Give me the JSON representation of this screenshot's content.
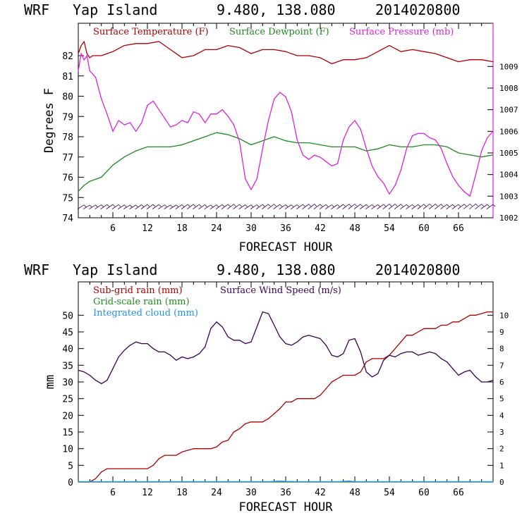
{
  "colors": {
    "temperature": "#b00000",
    "dewpoint": "#1e8c1e",
    "pressure": "#e020e0",
    "subgrid_rain": "#b00000",
    "gridscale_rain": "#1e8c1e",
    "cloud": "#1e90ff",
    "wind": "#3c0058",
    "axis": "#000000"
  },
  "chart_data": [
    {
      "type": "line",
      "title": {
        "model": "WRF",
        "location": "Yap Island",
        "coords": "9.480, 138.080",
        "init": "2014020800"
      },
      "xlabel": "FORECAST HOUR",
      "ylabel": "Degrees F",
      "xlim": [
        0,
        72
      ],
      "ylim": [
        74,
        83.6
      ],
      "y2lim": [
        1002,
        1011
      ],
      "xticks": [
        6,
        12,
        18,
        24,
        30,
        36,
        42,
        48,
        54,
        60,
        66
      ],
      "yticks": [
        74,
        75,
        76,
        77,
        78,
        79,
        80,
        81,
        82
      ],
      "y2ticks": [
        1002,
        1003,
        1004,
        1005,
        1006,
        1007,
        1008,
        1009
      ],
      "legend": [
        "Surface Temperature (F)",
        "Surface Dewpoint (F)",
        "Surface Pressure (mb)"
      ],
      "series": [
        {
          "name": "Surface Temperature (F)",
          "axis": "left",
          "x": [
            0,
            0.5,
            1,
            1.5,
            2,
            2.5,
            3,
            4,
            5,
            6,
            8,
            10,
            12,
            14,
            16,
            18,
            20,
            22,
            24,
            26,
            28,
            30,
            32,
            34,
            36,
            38,
            40,
            42,
            44,
            46,
            48,
            50,
            52,
            54,
            56,
            58,
            60,
            62,
            64,
            66,
            68,
            70,
            72
          ],
          "values": [
            82.1,
            82.5,
            82.7,
            82.1,
            81.9,
            82.0,
            82.0,
            82.0,
            82.1,
            82.2,
            82.5,
            82.6,
            82.6,
            82.7,
            82.3,
            81.9,
            82.0,
            82.3,
            82.3,
            82.5,
            82.4,
            82.1,
            82.3,
            82.3,
            82.2,
            82.0,
            82.0,
            81.9,
            81.6,
            81.8,
            81.8,
            81.9,
            82.2,
            82.5,
            82.2,
            82.3,
            82.2,
            82.1,
            81.9,
            81.7,
            81.8,
            81.8,
            81.7
          ]
        },
        {
          "name": "Surface Dewpoint (F)",
          "axis": "left",
          "x": [
            0,
            1,
            2,
            3,
            4,
            5,
            6,
            8,
            10,
            12,
            14,
            16,
            18,
            20,
            22,
            24,
            26,
            28,
            30,
            32,
            34,
            36,
            38,
            40,
            42,
            44,
            46,
            48,
            50,
            52,
            54,
            56,
            58,
            60,
            62,
            64,
            66,
            68,
            70,
            72
          ],
          "values": [
            75.3,
            75.6,
            75.8,
            75.9,
            76.0,
            76.3,
            76.6,
            77.0,
            77.3,
            77.5,
            77.5,
            77.5,
            77.6,
            77.8,
            78.0,
            78.2,
            78.1,
            77.9,
            77.6,
            77.8,
            78.0,
            77.8,
            77.7,
            77.7,
            77.6,
            77.5,
            77.5,
            77.5,
            77.3,
            77.4,
            77.6,
            77.5,
            77.5,
            77.6,
            77.6,
            77.5,
            77.2,
            77.1,
            77.0,
            77.1
          ]
        },
        {
          "name": "Surface Pressure (mb)",
          "axis": "right",
          "x": [
            0,
            0.5,
            1,
            1.5,
            2,
            3,
            4,
            5,
            6,
            7,
            8,
            9,
            10,
            11,
            12,
            13,
            14,
            15,
            16,
            17,
            18,
            19,
            20,
            21,
            22,
            23,
            24,
            25,
            26,
            27,
            28,
            29,
            30,
            31,
            32,
            33,
            34,
            35,
            36,
            37,
            38,
            39,
            40,
            41,
            42,
            43,
            44,
            45,
            46,
            47,
            48,
            49,
            50,
            51,
            52,
            53,
            54,
            55,
            56,
            57,
            58,
            59,
            60,
            61,
            62,
            63,
            64,
            65,
            66,
            67,
            68,
            69,
            70,
            71,
            72
          ],
          "values": [
            1008.8,
            1009.6,
            1009.3,
            1009.5,
            1008.8,
            1008.5,
            1007.5,
            1006.8,
            1006.0,
            1006.5,
            1006.3,
            1006.4,
            1006.0,
            1006.4,
            1007.2,
            1007.4,
            1007.0,
            1006.6,
            1006.2,
            1006.3,
            1006.5,
            1006.4,
            1006.9,
            1006.8,
            1006.4,
            1006.8,
            1006.8,
            1007.0,
            1006.7,
            1006.3,
            1005.5,
            1003.8,
            1003.3,
            1003.8,
            1005.2,
            1006.5,
            1007.5,
            1007.8,
            1007.6,
            1006.9,
            1005.6,
            1004.9,
            1004.7,
            1004.9,
            1004.8,
            1004.6,
            1004.4,
            1004.5,
            1005.6,
            1006.2,
            1006.5,
            1006.1,
            1005.2,
            1004.4,
            1003.9,
            1003.6,
            1003.1,
            1003.5,
            1004.2,
            1005.2,
            1005.8,
            1005.9,
            1005.9,
            1005.7,
            1005.6,
            1005.2,
            1004.5,
            1003.9,
            1003.5,
            1003.2,
            1003.0,
            1004.0,
            1005.1,
            1005.7,
            1006.0
          ]
        }
      ],
      "wind_barbs": {
        "name": "Wind barbs",
        "y": 74.5,
        "note": "barbs along bottom of panel"
      }
    },
    {
      "type": "line",
      "title": {
        "model": "WRF",
        "location": "Yap Island",
        "coords": "9.480, 138.080",
        "init": "2014020800"
      },
      "xlabel": "FORECAST HOUR",
      "ylabel": "mm",
      "xlim": [
        0,
        72
      ],
      "ylim": [
        0,
        60
      ],
      "y2lim": [
        0,
        12
      ],
      "xticks": [
        6,
        12,
        18,
        24,
        30,
        36,
        42,
        48,
        54,
        60,
        66
      ],
      "yticks": [
        0,
        5,
        10,
        15,
        20,
        25,
        30,
        35,
        40,
        45,
        50
      ],
      "y2ticks": [
        0,
        1,
        2,
        3,
        4,
        5,
        6,
        7,
        8,
        9,
        10
      ],
      "legend": [
        "Sub-grid rain (mm)",
        "Grid-scale rain (mm)",
        "Integrated cloud (mm)",
        "Surface Wind Speed (m/s)"
      ],
      "series": [
        {
          "name": "Sub-grid rain (mm)",
          "axis": "left",
          "x": [
            0,
            1,
            2,
            3,
            4,
            5,
            11,
            12,
            13,
            14,
            15,
            16,
            17,
            18,
            19,
            20,
            22,
            23,
            24,
            25,
            26,
            27,
            28,
            29,
            30,
            31,
            32,
            33,
            34,
            35,
            36,
            37,
            38,
            39,
            40,
            41,
            42,
            43,
            44,
            45,
            46,
            47,
            48,
            49,
            50,
            51,
            52,
            53,
            54,
            55,
            56,
            57,
            58,
            59,
            60,
            61,
            62,
            63,
            64,
            65,
            66,
            67,
            68,
            69,
            70,
            71,
            72
          ],
          "values": [
            0,
            0,
            0,
            1,
            3,
            4,
            4,
            4,
            5,
            7,
            8,
            8,
            8,
            9,
            9.5,
            10,
            10,
            10,
            10.5,
            12,
            12.5,
            15,
            16,
            17.5,
            18,
            18,
            18,
            19,
            20.5,
            22,
            24,
            24,
            25,
            25,
            25,
            25,
            26,
            28,
            30,
            31,
            32,
            32,
            32,
            33,
            36,
            37,
            37,
            37,
            38,
            40,
            42,
            44,
            44,
            45,
            46,
            46,
            46,
            47,
            47,
            48,
            48,
            49,
            50,
            50,
            50.5,
            51,
            51
          ]
        },
        {
          "name": "Grid-scale rain (mm)",
          "axis": "left",
          "x": [
            0,
            72
          ],
          "values": [
            0,
            0
          ]
        },
        {
          "name": "Integrated cloud (mm)",
          "axis": "left",
          "x": [
            0,
            6,
            12,
            18,
            24,
            30,
            33,
            34,
            35,
            36,
            38,
            42,
            45,
            46,
            47,
            48,
            54,
            60,
            66,
            72
          ],
          "values": [
            0.1,
            0.1,
            0.1,
            0.1,
            0.1,
            0.1,
            0.1,
            0.2,
            0.3,
            0.2,
            0.1,
            0.1,
            0.1,
            0.2,
            0.3,
            0.1,
            0.1,
            0.1,
            0.1,
            0.1
          ]
        },
        {
          "name": "Surface Wind Speed (m/s)",
          "axis": "right",
          "x": [
            0,
            1,
            2,
            3,
            4,
            5,
            6,
            7,
            8,
            9,
            10,
            11,
            12,
            13,
            14,
            15,
            16,
            17,
            18,
            19,
            20,
            21,
            22,
            23,
            24,
            25,
            26,
            27,
            28,
            29,
            30,
            31,
            32,
            33,
            34,
            35,
            36,
            37,
            38,
            39,
            40,
            41,
            42,
            43,
            44,
            45,
            46,
            47,
            48,
            49,
            50,
            51,
            52,
            53,
            54,
            55,
            56,
            57,
            58,
            59,
            60,
            61,
            62,
            63,
            64,
            65,
            66,
            67,
            68,
            69,
            70,
            71,
            72
          ],
          "values": [
            6.7,
            6.6,
            6.4,
            6.1,
            5.9,
            6.1,
            6.8,
            7.5,
            7.9,
            8.2,
            8.4,
            8.3,
            8.3,
            8.0,
            7.8,
            7.8,
            7.6,
            7.3,
            7.5,
            7.4,
            7.5,
            7.7,
            8.1,
            9.2,
            9.6,
            9.3,
            8.7,
            8.5,
            8.5,
            8.3,
            8.4,
            9.3,
            10.2,
            10.1,
            9.4,
            8.7,
            8.3,
            8.2,
            8.4,
            8.7,
            8.8,
            8.7,
            8.6,
            8.2,
            7.6,
            7.5,
            7.7,
            8.5,
            8.6,
            7.8,
            6.6,
            6.3,
            6.5,
            7.3,
            7.6,
            7.5,
            7.7,
            7.8,
            7.8,
            7.6,
            7.7,
            7.8,
            7.7,
            7.4,
            7.2,
            6.8,
            6.4,
            6.6,
            6.7,
            6.3,
            6.0,
            6.0,
            6.1
          ]
        }
      ]
    }
  ]
}
